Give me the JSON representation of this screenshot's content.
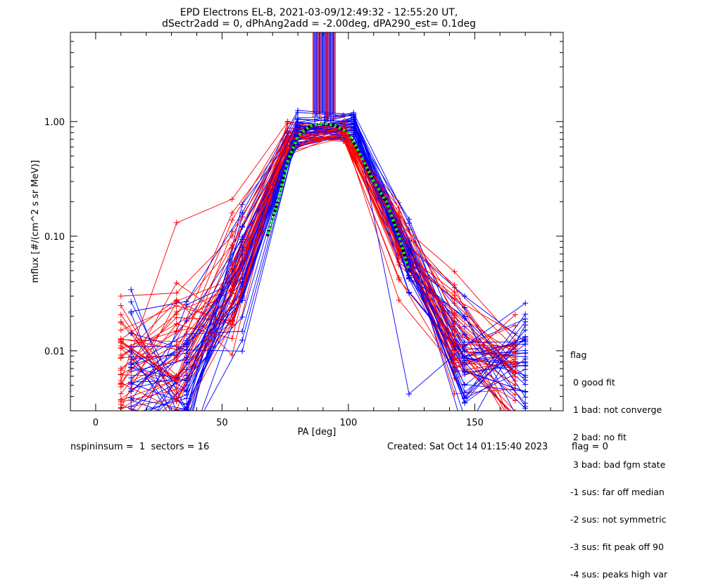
{
  "chart_data": {
    "type": "line",
    "title_line1": "EPD Electrons EL-B, 2021-03-09/12:49:32 - 12:55:20 UT,",
    "title_line2": "dSectr2add = 0, dPhAng2add = -2.00deg, dPA290_est=   0.1deg",
    "xlabel": "PA [deg]",
    "ylabel": "mflux [#/(cm^2 s sr MeV)]",
    "xlim": [
      -10,
      185
    ],
    "ylim": [
      0.003,
      6.0
    ],
    "yscale": "log",
    "xticks": [
      0,
      50,
      100,
      150
    ],
    "xtick_labels": [
      "0",
      "50",
      "100",
      "150"
    ],
    "yticks": [
      0.01,
      0.1,
      1.0
    ],
    "ytick_labels": [
      "0.01",
      "0.10",
      "1.00"
    ],
    "grid": false,
    "colors": {
      "red": "#ff0000",
      "blue": "#0000ff",
      "fit_black": "#000000",
      "fit_green": "#00ff00"
    },
    "series_pattern_x": [
      10,
      14,
      32,
      36,
      54,
      58,
      76,
      80,
      98,
      102,
      120,
      124,
      142,
      146,
      166,
      170
    ],
    "representative_series": [
      {
        "color": "red",
        "x": [
          10,
          32,
          54,
          76,
          98,
          120,
          142,
          166
        ],
        "y": [
          0.011,
          0.0055,
          0.017,
          0.68,
          0.9,
          0.15,
          0.026,
          0.008
        ]
      },
      {
        "color": "red",
        "x": [
          10,
          32,
          54,
          76,
          98,
          120,
          142,
          166
        ],
        "y": [
          0.0055,
          0.131,
          0.21,
          0.99,
          0.85,
          0.16,
          0.021,
          0.0072
        ]
      },
      {
        "color": "red",
        "x": [
          10,
          32,
          54,
          76,
          98,
          120,
          142,
          166
        ],
        "y": [
          0.03,
          0.032,
          0.1,
          0.8,
          0.78,
          0.13,
          0.012,
          0.005
        ]
      },
      {
        "color": "blue",
        "x": [
          14,
          36,
          58,
          80,
          102,
          124,
          146,
          170
        ],
        "y": [
          0.022,
          0.027,
          0.16,
          1.25,
          1.15,
          0.0042,
          0.011,
          0.026
        ]
      },
      {
        "color": "blue",
        "x": [
          14,
          36,
          58,
          80,
          102,
          124,
          146,
          170
        ],
        "y": [
          0.0072,
          0.0055,
          0.08,
          1.05,
          1.0,
          0.08,
          0.03,
          0.012
        ]
      },
      {
        "color": "blue",
        "x": [
          14,
          36,
          58,
          80,
          102,
          124,
          146,
          170
        ],
        "y": [
          0.01,
          0.0045,
          0.12,
          1.2,
          1.12,
          0.06,
          0.0035,
          0.0085
        ]
      }
    ],
    "fit_curve": {
      "peak_x": 90,
      "peak_y": 0.97,
      "points": [
        [
          68,
          0.1
        ],
        [
          72,
          0.2
        ],
        [
          76,
          0.45
        ],
        [
          80,
          0.75
        ],
        [
          85,
          0.92
        ],
        [
          90,
          0.97
        ],
        [
          95,
          0.92
        ],
        [
          100,
          0.8
        ],
        [
          105,
          0.5
        ],
        [
          110,
          0.3
        ],
        [
          115,
          0.2
        ],
        [
          120,
          0.1
        ],
        [
          124,
          0.05
        ]
      ]
    }
  },
  "legend": {
    "header": "flag",
    "items": [
      " 0 good fit",
      " 1 bad: not converge",
      " 2 bad: no fit",
      " 3 bad: bad fgm state",
      "-1 sus: far off median",
      "-2 sus: not symmetric",
      "-3 sus: fit peak off 90",
      "-4 sus: peaks high var"
    ]
  },
  "footer": {
    "left": "nspininsum =  1  sectors = 16",
    "created": "Created: Sat Oct 14 01:15:40 2023",
    "flag": "flag = 0"
  }
}
